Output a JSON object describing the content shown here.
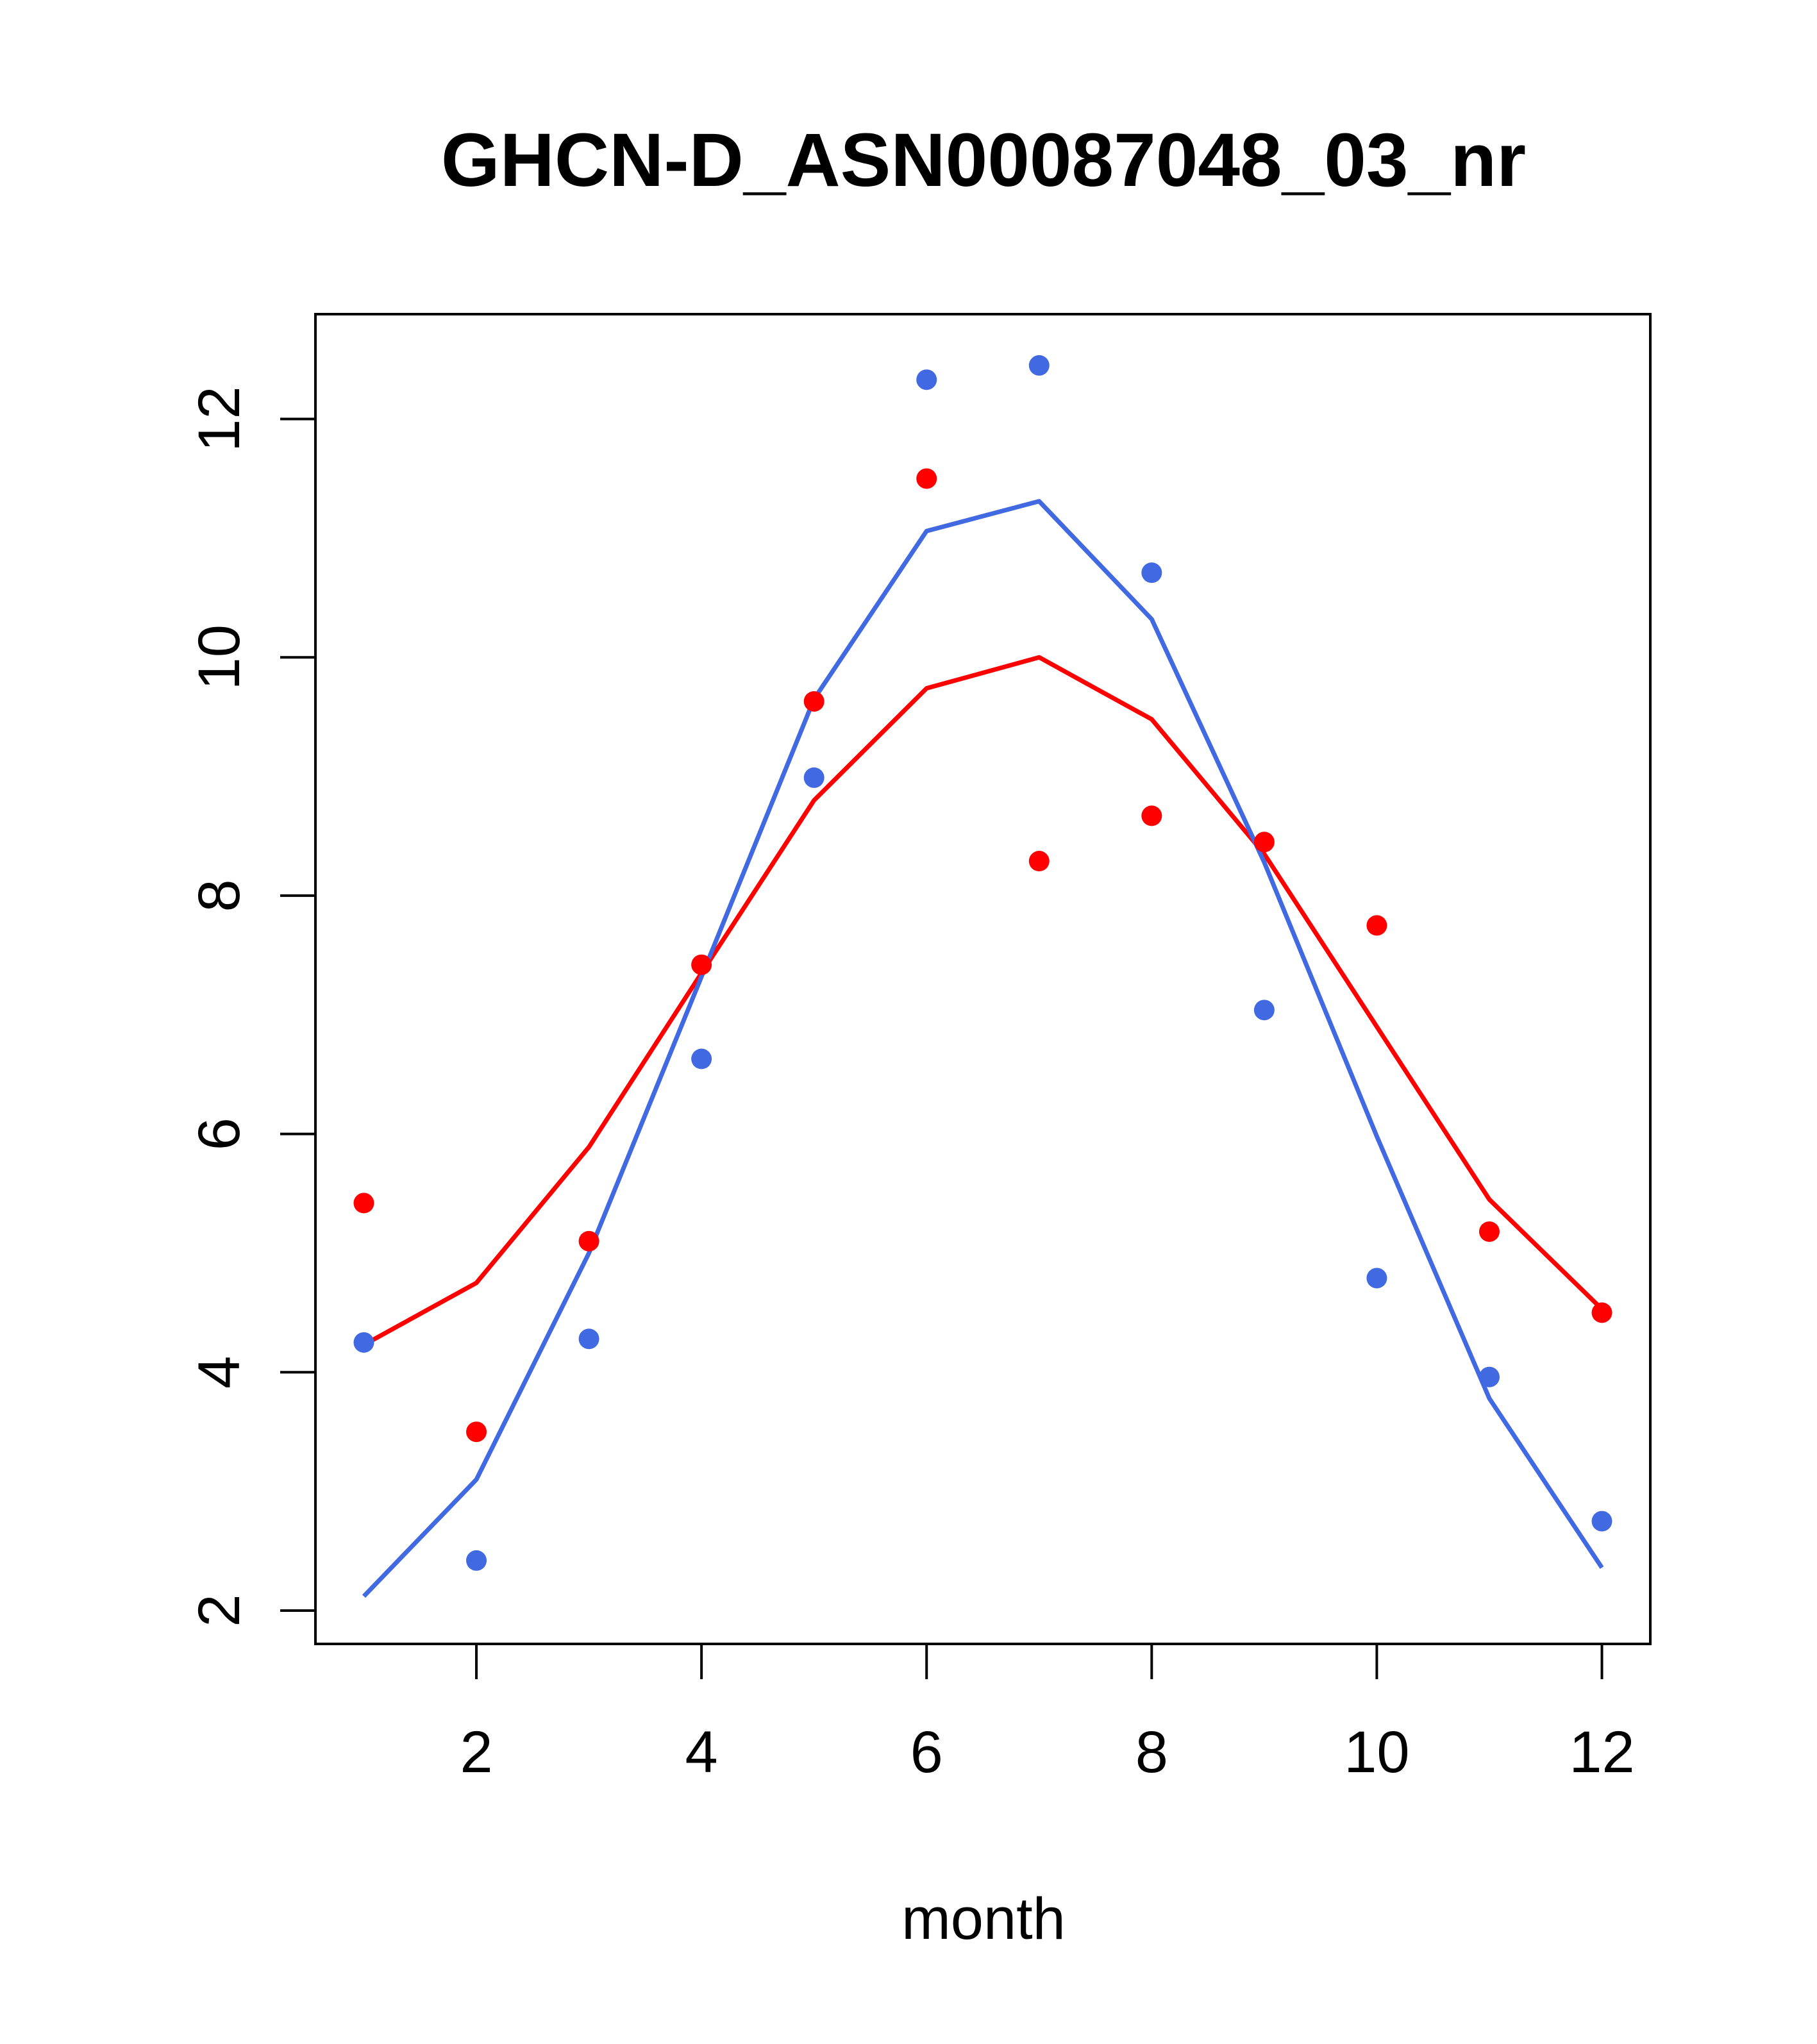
{
  "chart_data": {
    "type": "line",
    "title": "GHCN-D_ASN00087048_03_nr",
    "xlabel": "month",
    "ylabel": "",
    "xlim": [
      0.57,
      12.43
    ],
    "ylim": [
      1.72,
      12.88
    ],
    "x_ticks": [
      2,
      4,
      6,
      8,
      10,
      12
    ],
    "x_tick_labels": [
      "2",
      "4",
      "6",
      "8",
      "10",
      "12"
    ],
    "y_ticks": [
      2,
      4,
      6,
      8,
      10,
      12
    ],
    "y_tick_labels": [
      "2",
      "4",
      "6",
      "8",
      "10",
      "12"
    ],
    "grid": false,
    "legend": "none",
    "x": [
      1,
      2,
      3,
      4,
      5,
      6,
      7,
      8,
      9,
      10,
      11,
      12
    ],
    "series": [
      {
        "color": "#ff0000",
        "points": [
          5.42,
          3.5,
          5.1,
          7.42,
          9.63,
          11.5,
          8.29,
          8.67,
          8.45,
          7.75,
          5.18,
          4.5
        ],
        "line": [
          4.23,
          4.75,
          5.89,
          7.35,
          8.8,
          9.74,
          10.0,
          9.48,
          8.35,
          6.9,
          5.45,
          4.53
        ]
      },
      {
        "color": "#4169e1",
        "points": [
          4.25,
          2.42,
          4.28,
          6.63,
          8.99,
          12.33,
          12.45,
          10.71,
          7.04,
          4.79,
          3.96,
          2.75
        ],
        "line": [
          2.12,
          3.1,
          5.0,
          7.32,
          9.65,
          11.06,
          11.31,
          10.32,
          8.28,
          5.98,
          3.78,
          2.36
        ]
      }
    ]
  }
}
